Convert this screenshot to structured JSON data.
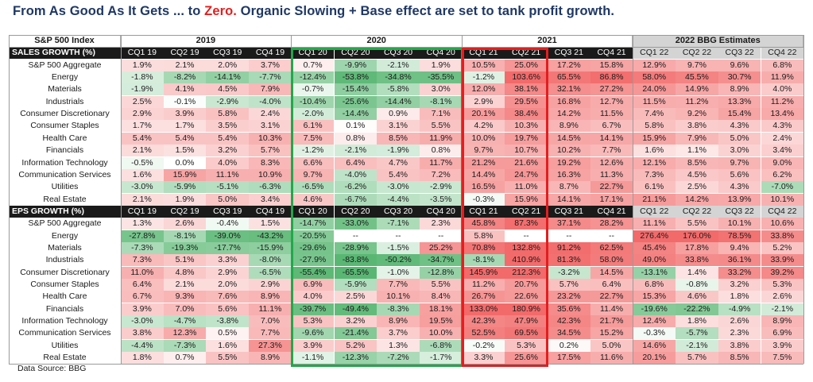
{
  "title": {
    "part1": "From As Good As It Gets ... to ",
    "accent": "Zero.",
    "part2": "  Organic Slowing + Base effect are set to tank profit growth."
  },
  "header": {
    "index_label": "S&P 500 Index",
    "years": [
      "2019",
      "2020",
      "2021",
      "2022 BBG Estimates"
    ]
  },
  "quarters": [
    "CQ1 19",
    "CQ2 19",
    "CQ3 19",
    "CQ4 19",
    "CQ1 20",
    "CQ2 20",
    "CQ3 20",
    "CQ4 20",
    "CQ1 21",
    "CQ2 21",
    "CQ3 21",
    "CQ4 21",
    "CQ1 22",
    "CQ2 22",
    "CQ3 22",
    "CQ4 22"
  ],
  "sales": {
    "label": "SALES GROWTH (%)",
    "rows": [
      {
        "name": "S&P 500 Aggregate",
        "values": [
          "1.9%",
          "2.1%",
          "2.0%",
          "3.7%",
          "0.7%",
          "-9.9%",
          "-2.1%",
          "1.9%",
          "10.5%",
          "25.0%",
          "17.2%",
          "15.8%",
          "12.9%",
          "9.7%",
          "9.6%",
          "6.8%"
        ]
      },
      {
        "name": "Energy",
        "values": [
          "-1.8%",
          "-8.2%",
          "-14.1%",
          "-7.7%",
          "-12.4%",
          "-53.8%",
          "-34.8%",
          "-35.5%",
          "-1.2%",
          "103.6%",
          "65.5%",
          "86.8%",
          "58.0%",
          "45.5%",
          "30.7%",
          "11.9%"
        ]
      },
      {
        "name": "Materials",
        "values": [
          "-1.9%",
          "4.1%",
          "4.5%",
          "7.9%",
          "-0.7%",
          "-15.4%",
          "-5.8%",
          "3.0%",
          "12.0%",
          "38.1%",
          "32.1%",
          "27.2%",
          "24.0%",
          "14.9%",
          "8.9%",
          "4.0%"
        ]
      },
      {
        "name": "Industrials",
        "values": [
          "2.5%",
          "-0.1%",
          "-2.9%",
          "-4.0%",
          "-10.4%",
          "-25.6%",
          "-14.4%",
          "-8.1%",
          "2.9%",
          "29.5%",
          "16.8%",
          "12.7%",
          "11.5%",
          "11.2%",
          "13.3%",
          "11.2%"
        ]
      },
      {
        "name": "Consumer Discretionary",
        "values": [
          "2.9%",
          "3.9%",
          "5.8%",
          "2.4%",
          "-2.0%",
          "-14.4%",
          "0.9%",
          "7.1%",
          "20.1%",
          "38.4%",
          "14.2%",
          "11.5%",
          "7.4%",
          "9.2%",
          "15.4%",
          "13.4%"
        ]
      },
      {
        "name": "Consumer Staples",
        "values": [
          "1.7%",
          "1.7%",
          "3.5%",
          "3.1%",
          "6.1%",
          "0.1%",
          "3.1%",
          "5.5%",
          "4.2%",
          "10.3%",
          "8.9%",
          "6.7%",
          "5.8%",
          "3.8%",
          "4.3%",
          "4.3%"
        ]
      },
      {
        "name": "Health Care",
        "values": [
          "5.4%",
          "5.4%",
          "5.4%",
          "10.3%",
          "7.5%",
          "0.8%",
          "8.5%",
          "11.9%",
          "10.0%",
          "19.7%",
          "14.5%",
          "14.1%",
          "15.9%",
          "7.9%",
          "5.0%",
          "2.4%"
        ]
      },
      {
        "name": "Financials",
        "values": [
          "2.1%",
          "1.5%",
          "3.2%",
          "5.7%",
          "-1.2%",
          "-2.1%",
          "-1.9%",
          "0.8%",
          "9.7%",
          "10.7%",
          "10.2%",
          "7.7%",
          "1.6%",
          "1.1%",
          "3.0%",
          "3.4%"
        ]
      },
      {
        "name": "Information Technology",
        "values": [
          "-0.5%",
          "0.0%",
          "4.0%",
          "8.3%",
          "6.6%",
          "6.4%",
          "4.7%",
          "11.7%",
          "21.2%",
          "21.6%",
          "19.2%",
          "12.6%",
          "12.1%",
          "8.5%",
          "9.7%",
          "9.0%"
        ]
      },
      {
        "name": "Communication Services",
        "values": [
          "1.6%",
          "15.9%",
          "11.1%",
          "10.9%",
          "9.7%",
          "-4.0%",
          "5.4%",
          "7.2%",
          "14.4%",
          "24.7%",
          "16.3%",
          "11.3%",
          "7.3%",
          "4.5%",
          "5.6%",
          "6.2%"
        ]
      },
      {
        "name": "Utilities",
        "values": [
          "-3.0%",
          "-5.9%",
          "-5.1%",
          "-6.3%",
          "-6.5%",
          "-6.2%",
          "-3.0%",
          "-2.9%",
          "16.5%",
          "11.0%",
          "8.7%",
          "22.7%",
          "6.1%",
          "2.5%",
          "4.3%",
          "-7.0%"
        ]
      },
      {
        "name": "Real Estate",
        "values": [
          "2.1%",
          "1.9%",
          "5.0%",
          "3.4%",
          "4.6%",
          "-6.7%",
          "-4.4%",
          "-3.5%",
          "-0.3%",
          "15.9%",
          "14.1%",
          "17.1%",
          "21.1%",
          "14.2%",
          "13.9%",
          "10.1%"
        ]
      }
    ]
  },
  "eps": {
    "label": "EPS GROWTH (%)",
    "rows": [
      {
        "name": "S&P 500 Aggregate",
        "values": [
          "1.3%",
          "2.6%",
          "-0.4%",
          "1.5%",
          "-14.7%",
          "-33.0%",
          "-7.1%",
          "2.3%",
          "45.8%",
          "87.3%",
          "37.1%",
          "28.2%",
          "11.1%",
          "5.5%",
          "10.1%",
          "10.6%"
        ]
      },
      {
        "name": "Energy",
        "values": [
          "-27.8%",
          "-8.1%",
          "-39.0%",
          "-43.2%",
          "-20.5%",
          "--",
          "--",
          "--",
          "5.8%",
          "--",
          "--",
          "--",
          "276.4%",
          "176.0%",
          "78.5%",
          "33.8%"
        ]
      },
      {
        "name": "Materials",
        "values": [
          "-7.3%",
          "-19.3%",
          "-17.7%",
          "-15.9%",
          "-29.6%",
          "-28.9%",
          "-1.5%",
          "25.2%",
          "70.8%",
          "132.8%",
          "91.2%",
          "62.5%",
          "45.4%",
          "17.8%",
          "9.4%",
          "5.2%"
        ]
      },
      {
        "name": "Industrials",
        "values": [
          "7.3%",
          "5.1%",
          "3.3%",
          "-8.0%",
          "-27.9%",
          "-83.8%",
          "-50.2%",
          "-34.7%",
          "-8.1%",
          "410.9%",
          "81.3%",
          "58.0%",
          "49.0%",
          "33.8%",
          "36.1%",
          "33.9%"
        ]
      },
      {
        "name": "Consumer Discretionary",
        "values": [
          "11.0%",
          "4.8%",
          "2.9%",
          "-6.5%",
          "-55.4%",
          "-65.5%",
          "-1.0%",
          "-12.8%",
          "145.9%",
          "212.3%",
          "-3.2%",
          "14.5%",
          "-13.1%",
          "1.4%",
          "33.2%",
          "39.2%"
        ]
      },
      {
        "name": "Consumer Staples",
        "values": [
          "6.4%",
          "2.1%",
          "2.0%",
          "2.9%",
          "6.9%",
          "-5.9%",
          "7.7%",
          "5.5%",
          "11.2%",
          "20.7%",
          "5.7%",
          "6.4%",
          "6.8%",
          "-0.8%",
          "3.2%",
          "5.3%"
        ]
      },
      {
        "name": "Health Care",
        "values": [
          "6.7%",
          "9.3%",
          "7.6%",
          "8.9%",
          "4.0%",
          "2.5%",
          "10.1%",
          "8.4%",
          "26.7%",
          "22.6%",
          "23.2%",
          "22.7%",
          "15.3%",
          "4.6%",
          "1.8%",
          "2.6%"
        ]
      },
      {
        "name": "Financials",
        "values": [
          "3.9%",
          "7.0%",
          "5.6%",
          "11.1%",
          "-39.7%",
          "-49.4%",
          "-8.3%",
          "18.1%",
          "133.0%",
          "180.9%",
          "35.6%",
          "11.4%",
          "-19.6%",
          "-22.2%",
          "-4.9%",
          "-2.1%"
        ]
      },
      {
        "name": "Information Technology",
        "values": [
          "-3.0%",
          "-4.7%",
          "-3.8%",
          "7.0%",
          "5.3%",
          "3.2%",
          "8.9%",
          "19.5%",
          "42.3%",
          "47.9%",
          "42.3%",
          "21.7%",
          "12.4%",
          "1.8%",
          "2.6%",
          "8.9%"
        ]
      },
      {
        "name": "Communication Services",
        "values": [
          "3.8%",
          "12.3%",
          "0.5%",
          "7.7%",
          "-9.6%",
          "-21.4%",
          "3.7%",
          "10.0%",
          "52.5%",
          "69.5%",
          "34.5%",
          "15.2%",
          "-0.3%",
          "-5.7%",
          "2.3%",
          "6.9%"
        ]
      },
      {
        "name": "Utilities",
        "values": [
          "-4.4%",
          "-7.3%",
          "1.6%",
          "27.3%",
          "3.9%",
          "5.2%",
          "1.3%",
          "-6.8%",
          "-0.2%",
          "5.3%",
          "0.2%",
          "5.0%",
          "14.6%",
          "-2.1%",
          "3.8%",
          "3.9%"
        ]
      },
      {
        "name": "Real Estate",
        "values": [
          "1.8%",
          "0.7%",
          "5.5%",
          "8.9%",
          "-1.1%",
          "-12.3%",
          "-7.2%",
          "-1.7%",
          "3.3%",
          "25.6%",
          "17.5%",
          "11.6%",
          "20.1%",
          "5.7%",
          "8.5%",
          "7.5%"
        ]
      }
    ]
  },
  "source": "Data Source: BBG",
  "colors": {
    "title": "#1f3864",
    "accent": "#e41e1e",
    "box_2020": "#22a84a",
    "box_2021": "#e41e1e",
    "section_header_bg": "#1a1a1a",
    "estimates_header_bg": "#d4d4d4"
  }
}
